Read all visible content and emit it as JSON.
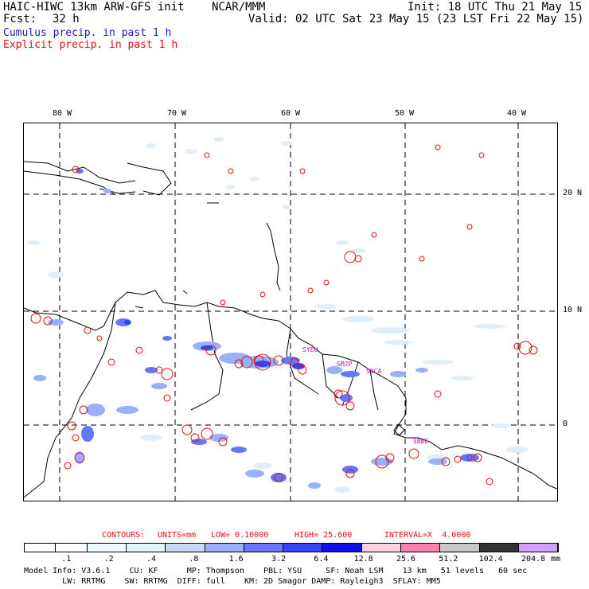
{
  "header": {
    "model": "HAIC-HIWC 13km ARW-GFS init",
    "org": "NCAR/MMM",
    "init": "Init: 18 UTC Thu 21 May 15",
    "fcst_label": "Fcst:",
    "fcst_value": "32 h",
    "valid": "Valid: 02 UTC Sat 23 May 15 (23 LST Fri 22 May 15)",
    "cumulus": "Cumulus precip. in past 1 h",
    "explicit": "Explicit precip. in past 1 h"
  },
  "colors": {
    "cumulus_text": "#1b1bb3",
    "explicit_text": "#e01010",
    "explicit_contour": "#e01010",
    "coast": "#000000"
  },
  "map": {
    "lon_ticks": [
      "80 W",
      "70 W",
      "60 W",
      "50 W",
      "40 W"
    ],
    "lat_ticks": [
      "20 N",
      "10 N",
      "0"
    ],
    "cities": [
      "SYEU",
      "SMJP",
      "SOCA",
      "SBBE"
    ]
  },
  "contours": {
    "label": "CONTOURS:",
    "units": "UNITS=mm",
    "low": "LOW= 0.10000",
    "high": "HIGH= 25.600",
    "interval": "INTERVAL=X  4.0000"
  },
  "legend": {
    "labels": [
      ".1",
      ".2",
      ".4",
      ".8",
      "1.6",
      "3.2",
      "6.4",
      "12.8",
      "25.6",
      "51.2",
      "102.4",
      "204.8"
    ],
    "unit": "mm",
    "colors": [
      "#ffffff",
      "#ffffff",
      "#eef8ff",
      "#e0f4f8",
      "#c8d8ff",
      "#9ab0ff",
      "#6677ff",
      "#3344ff",
      "#1010ee",
      "#ffd0e0",
      "#ff80b0",
      "#c8c8c8",
      "#333333",
      "#d0a0ff"
    ]
  },
  "footer": {
    "line1": "Model Info: V3.6.1    CU: KF      MP: Thompson    PBL: YSU     SF: Noah LSM    13 km   51 levels   60 sec",
    "line2": "        LW: RRTMG    SW: RRTMG  DIFF: full    KM: 2D Smagor DAMP: Rayleigh3  SFLAY: MM5"
  }
}
